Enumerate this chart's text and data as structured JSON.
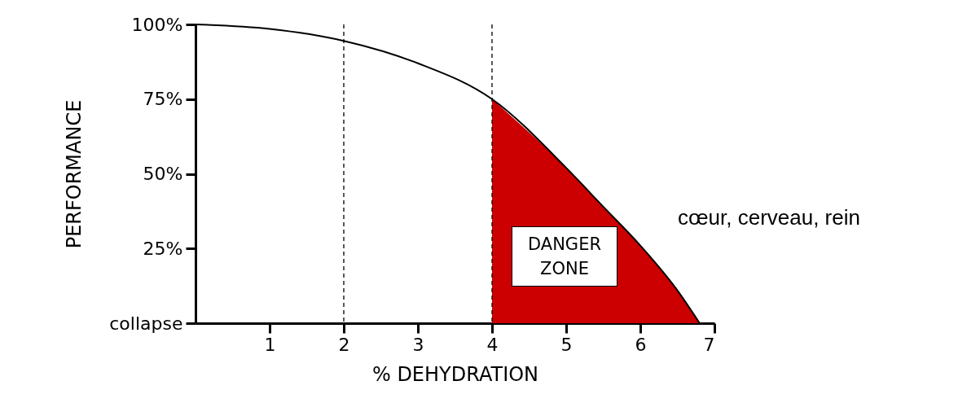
{
  "chart_data": {
    "type": "line",
    "xlabel": "% DEHYDRATION",
    "ylabel": "PERFORMANCE",
    "xlim": [
      0,
      7
    ],
    "ylim": [
      0,
      100
    ],
    "xticks": [
      1,
      2,
      3,
      4,
      5,
      6,
      7
    ],
    "yticks": [
      {
        "value": 0,
        "label": "collapse"
      },
      {
        "value": 25,
        "label": "25%"
      },
      {
        "value": 50,
        "label": "50%"
      },
      {
        "value": 75,
        "label": "75%"
      },
      {
        "value": 100,
        "label": "100%"
      }
    ],
    "series": [
      {
        "color": "#000000",
        "x": [
          0,
          1,
          2,
          3,
          4,
          5,
          5.5,
          6,
          6.5,
          6.8
        ],
        "values": [
          100,
          98.5,
          94.5,
          87,
          75,
          52,
          39,
          26,
          11,
          0
        ]
      },
      {
        "type": "area",
        "color": "#cc0000",
        "x": [
          4,
          5,
          5.5,
          6,
          6.5,
          6.8
        ],
        "values": [
          75,
          52,
          39,
          26,
          11,
          0
        ]
      }
    ],
    "ref_lines": [
      {
        "axis": "x",
        "value": 2,
        "color": "#000000",
        "line_style": "dashed"
      },
      {
        "axis": "x",
        "value": 4,
        "color": "#000000",
        "line_style": "dashed"
      }
    ],
    "annotations": [
      "DANGER ZONE",
      "cœur, cerveau, rein"
    ]
  }
}
